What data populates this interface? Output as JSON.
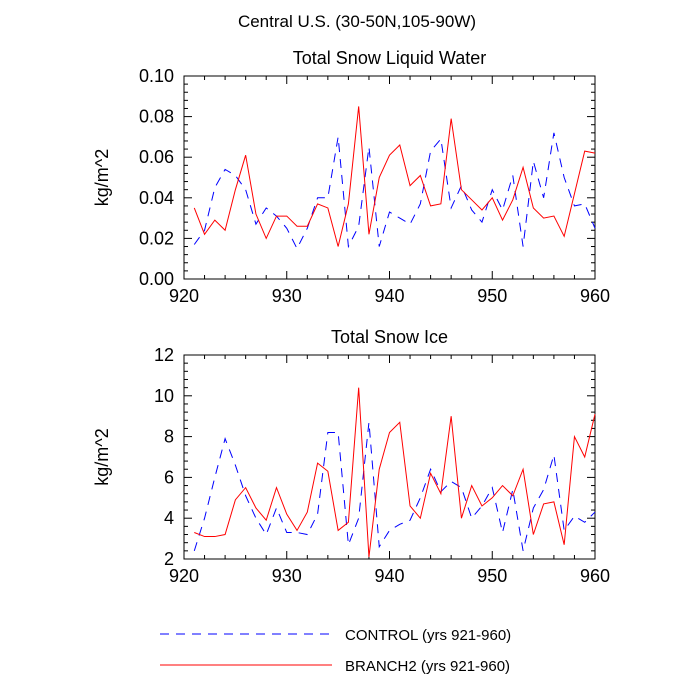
{
  "figure_title": "Central U.S. (30-50N,105-90W)",
  "legend": [
    {
      "label": "CONTROL (yrs 921-960)",
      "color": "#0000ff",
      "dash": "dashed"
    },
    {
      "label": "BRANCH2 (yrs 921-960)",
      "color": "#ff0000",
      "dash": "solid"
    }
  ],
  "chart_data": [
    {
      "type": "line",
      "title": "Total Snow Liquid Water",
      "xlabel": "",
      "ylabel": "kg/m^2",
      "xlim": [
        920,
        960
      ],
      "ylim": [
        0,
        0.1
      ],
      "xticks": [
        920,
        930,
        940,
        950,
        960
      ],
      "yticks": [
        0.0,
        0.02,
        0.04,
        0.06,
        0.08,
        0.1
      ],
      "ytick_labels": [
        "0.00",
        "0.02",
        "0.04",
        "0.06",
        "0.08",
        "0.10"
      ],
      "x": [
        921,
        922,
        923,
        924,
        925,
        926,
        927,
        928,
        929,
        930,
        931,
        932,
        933,
        934,
        935,
        936,
        937,
        938,
        939,
        940,
        941,
        942,
        943,
        944,
        945,
        946,
        947,
        948,
        949,
        950,
        951,
        952,
        953,
        954,
        955,
        956,
        957,
        958,
        959,
        960
      ],
      "series": [
        {
          "name": "CONTROL (yrs 921-960)",
          "color": "#0000ff",
          "dash": "dashed",
          "values": [
            0.017,
            0.024,
            0.045,
            0.054,
            0.051,
            0.044,
            0.027,
            0.035,
            0.031,
            0.025,
            0.015,
            0.025,
            0.04,
            0.04,
            0.07,
            0.016,
            0.026,
            0.065,
            0.016,
            0.033,
            0.03,
            0.027,
            0.037,
            0.063,
            0.069,
            0.035,
            0.046,
            0.034,
            0.028,
            0.044,
            0.034,
            0.051,
            0.016,
            0.058,
            0.04,
            0.072,
            0.05,
            0.036,
            0.037,
            0.025
          ]
        },
        {
          "name": "BRANCH2 (yrs 921-960)",
          "color": "#ff0000",
          "dash": "solid",
          "values": [
            0.035,
            0.022,
            0.029,
            0.024,
            0.044,
            0.061,
            0.032,
            0.02,
            0.031,
            0.031,
            0.026,
            0.026,
            0.037,
            0.035,
            0.016,
            0.037,
            0.085,
            0.022,
            0.05,
            0.061,
            0.066,
            0.046,
            0.051,
            0.036,
            0.037,
            0.079,
            0.044,
            0.039,
            0.034,
            0.04,
            0.029,
            0.039,
            0.055,
            0.035,
            0.03,
            0.031,
            0.021,
            0.042,
            0.063,
            0.062
          ]
        }
      ]
    },
    {
      "type": "line",
      "title": "Total Snow Ice",
      "xlabel": "",
      "ylabel": "kg/m^2",
      "xlim": [
        920,
        960
      ],
      "ylim": [
        2,
        12
      ],
      "xticks": [
        920,
        930,
        940,
        950,
        960
      ],
      "yticks": [
        2,
        4,
        6,
        8,
        10,
        12
      ],
      "ytick_labels": [
        "2",
        "4",
        "6",
        "8",
        "10",
        "12"
      ],
      "x": [
        921,
        922,
        923,
        924,
        925,
        926,
        927,
        928,
        929,
        930,
        931,
        932,
        933,
        934,
        935,
        936,
        937,
        938,
        939,
        940,
        941,
        942,
        943,
        944,
        945,
        946,
        947,
        948,
        949,
        950,
        951,
        952,
        953,
        954,
        955,
        956,
        957,
        958,
        959,
        960
      ],
      "series": [
        {
          "name": "CONTROL (yrs 921-960)",
          "color": "#0000ff",
          "dash": "dashed",
          "values": [
            2.4,
            4.0,
            6.0,
            7.9,
            6.6,
            5.1,
            4.0,
            3.2,
            4.5,
            3.3,
            3.3,
            3.2,
            4.2,
            8.2,
            8.2,
            2.7,
            4.0,
            8.7,
            2.6,
            3.4,
            3.7,
            3.9,
            5.0,
            6.4,
            5.3,
            5.8,
            5.5,
            4.0,
            4.6,
            5.5,
            3.3,
            5.4,
            2.4,
            4.5,
            5.4,
            7.1,
            3.4,
            4.1,
            3.8,
            4.3
          ]
        },
        {
          "name": "BRANCH2 (yrs 921-960)",
          "color": "#ff0000",
          "dash": "solid",
          "values": [
            3.3,
            3.1,
            3.1,
            3.2,
            4.9,
            5.5,
            4.5,
            3.9,
            5.5,
            4.2,
            3.4,
            4.3,
            6.7,
            6.3,
            3.4,
            3.8,
            10.4,
            2.1,
            6.4,
            8.2,
            8.7,
            4.6,
            4.0,
            6.2,
            5.2,
            9.0,
            4.0,
            5.6,
            4.6,
            5.0,
            5.6,
            5.1,
            6.4,
            3.2,
            4.7,
            4.8,
            2.7,
            8.0,
            7.0,
            9.1
          ]
        }
      ]
    }
  ]
}
